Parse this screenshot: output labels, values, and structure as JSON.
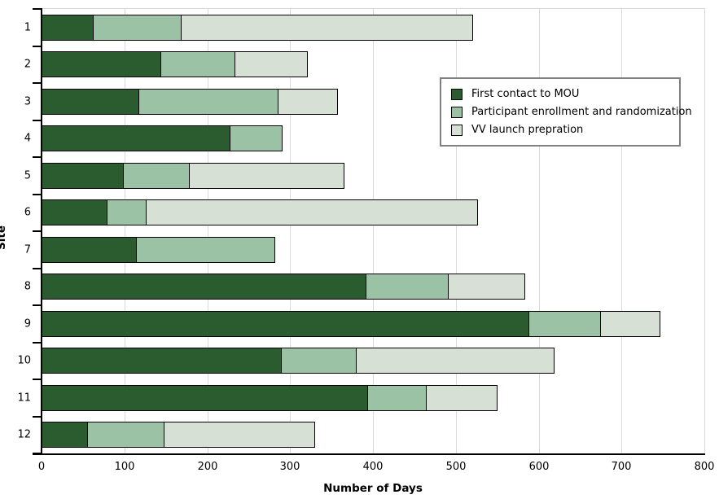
{
  "chart_data": {
    "type": "bar",
    "orientation": "horizontal",
    "stacked": true,
    "title": "",
    "xlabel": "Number of Days",
    "ylabel": "Site",
    "xlim": [
      0,
      800
    ],
    "xticks": [
      0,
      100,
      200,
      300,
      400,
      500,
      600,
      700,
      800
    ],
    "categories": [
      "1",
      "2",
      "3",
      "4",
      "5",
      "6",
      "7",
      "8",
      "9",
      "10",
      "11",
      "12"
    ],
    "series": [
      {
        "name": "First contact to MOU",
        "color": "#2b5c30",
        "values": [
          63,
          144,
          118,
          228,
          99,
          80,
          115,
          392,
          589,
          290,
          394,
          56
        ]
      },
      {
        "name": "Participant enrollment and randomization",
        "color": "#9cc2a6",
        "values": [
          106,
          90,
          168,
          63,
          80,
          47,
          167,
          99,
          86,
          90,
          71,
          92
        ]
      },
      {
        "name": "VV launch prepration",
        "color": "#d7e0d5",
        "values": [
          352,
          87,
          72,
          0,
          187,
          400,
          0,
          93,
          72,
          239,
          85,
          182
        ]
      }
    ],
    "legend_position": "upper right",
    "grid": "vertical",
    "colors": {
      "gridline": "#d9d9d9",
      "axis": "#000000",
      "bar_border": "#000000",
      "legend_border": "#7f7f7f",
      "background": "#ffffff"
    }
  }
}
